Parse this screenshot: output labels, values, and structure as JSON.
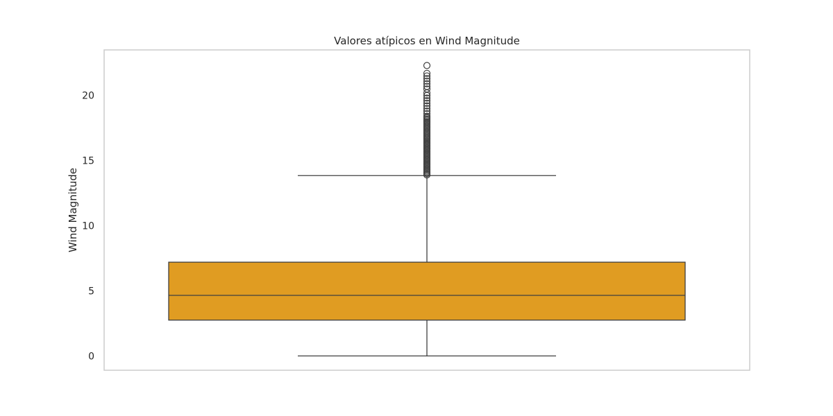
{
  "chart_data": {
    "type": "box",
    "title": "Valores atípicos en Wind Magnitude",
    "ylabel": "Wind Magnitude",
    "xlabel": "",
    "ylim": [
      -1.1,
      23.5
    ],
    "yticks": [
      0,
      5,
      10,
      15,
      20
    ],
    "grid": false,
    "colors": {
      "box_fill": "#e09c22",
      "line": "#3f3f3f",
      "frame": "#cccccc",
      "text": "#262626"
    },
    "series": [
      {
        "whisker_low": 0.0,
        "q1": 2.75,
        "median": 4.65,
        "q3": 7.2,
        "whisker_high": 13.85,
        "outliers": [
          13.9,
          14.0,
          14.1,
          14.2,
          14.3,
          14.4,
          14.5,
          14.6,
          14.7,
          14.8,
          14.9,
          15.0,
          15.1,
          15.2,
          15.3,
          15.4,
          15.5,
          15.6,
          15.7,
          15.8,
          15.9,
          16.0,
          16.1,
          16.2,
          16.3,
          16.4,
          16.5,
          16.6,
          16.7,
          16.8,
          16.9,
          17.0,
          17.1,
          17.2,
          17.3,
          17.4,
          17.5,
          17.6,
          17.7,
          17.8,
          17.9,
          18.0,
          18.1,
          18.2,
          18.3,
          18.4,
          18.6,
          18.8,
          19.0,
          19.2,
          19.4,
          19.6,
          19.8,
          20.0,
          20.2,
          20.5,
          20.7,
          20.9,
          21.1,
          21.3,
          21.5,
          21.7,
          22.3
        ]
      }
    ]
  }
}
